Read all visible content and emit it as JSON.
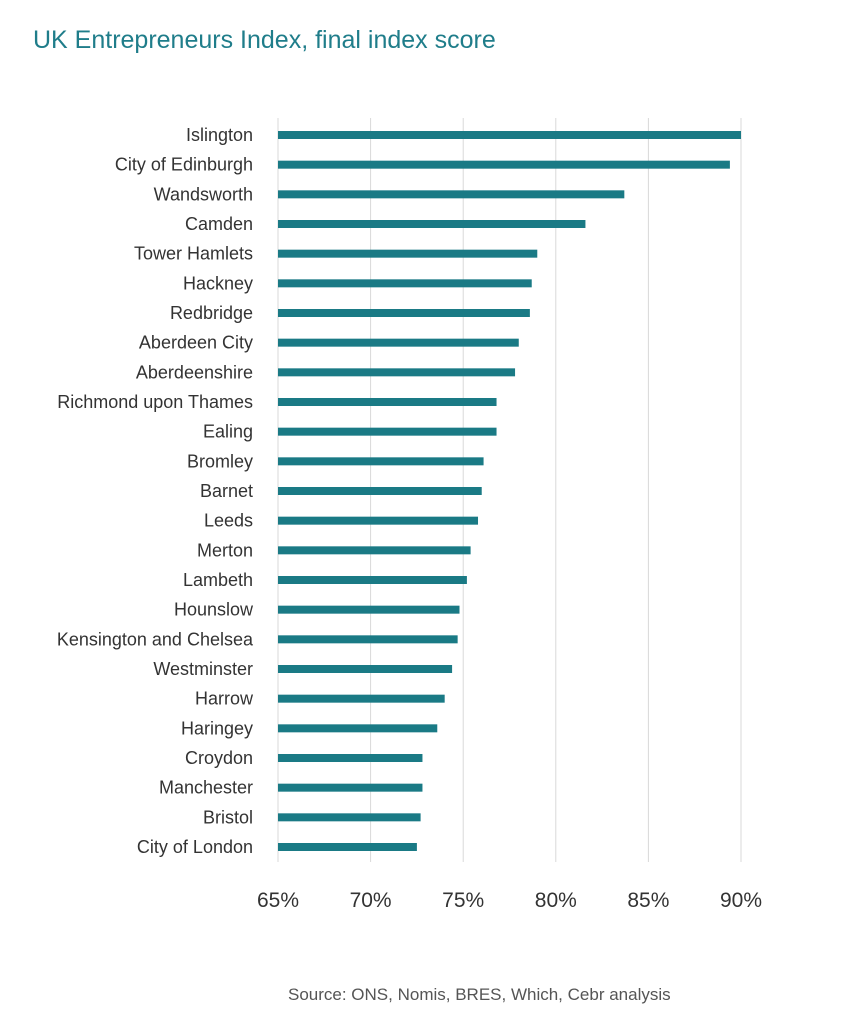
{
  "chart_data": {
    "type": "bar",
    "orientation": "horizontal",
    "title": "UK Entrepreneurs Index, final index score",
    "source": "Source: ONS, Nomis, BRES, Which, Cebr analysis",
    "xlim": [
      65,
      90
    ],
    "xticks": [
      "65%",
      "70%",
      "75%",
      "80%",
      "85%",
      "90%"
    ],
    "grid": true,
    "bar_color": "#1a7a85",
    "categories": [
      "Islington",
      "City of Edinburgh",
      "Wandsworth",
      "Camden",
      "Tower Hamlets",
      "Hackney",
      "Redbridge",
      "Aberdeen City",
      "Aberdeenshire",
      "Richmond upon Thames",
      "Ealing",
      "Bromley",
      "Barnet",
      "Leeds",
      "Merton",
      "Lambeth",
      "Hounslow",
      "Kensington and Chelsea",
      "Westminster",
      "Harrow",
      "Haringey",
      "Croydon",
      "Manchester",
      "Bristol",
      "City of London"
    ],
    "values": [
      90.0,
      89.4,
      83.7,
      81.6,
      79.0,
      78.7,
      78.6,
      78.0,
      77.8,
      76.8,
      76.8,
      76.1,
      76.0,
      75.8,
      75.4,
      75.2,
      74.8,
      74.7,
      74.4,
      74.0,
      73.6,
      72.8,
      72.8,
      72.7,
      72.5
    ]
  }
}
